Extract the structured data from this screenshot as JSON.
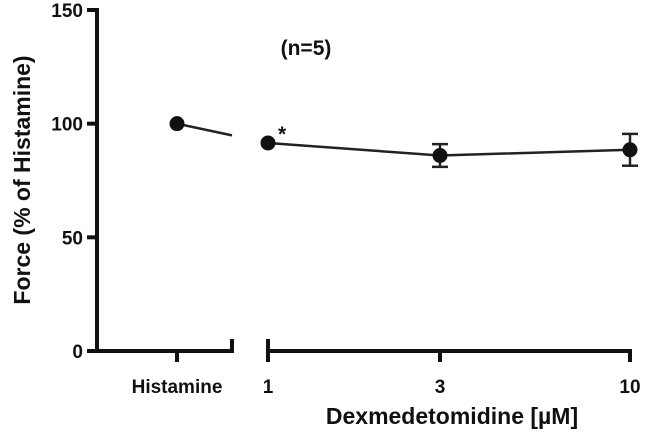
{
  "chart_data": {
    "type": "scatter",
    "ylabel": "Force (% of Histamine)",
    "xlabel": "Dexmedetomidine [µM]",
    "ylim": [
      0,
      150
    ],
    "yticks": [
      0,
      50,
      100,
      150
    ],
    "categories": [
      "Histamine",
      "1",
      "3",
      "10"
    ],
    "points": [
      {
        "x": "Histamine",
        "y": 100,
        "err": 0
      },
      {
        "x": "1",
        "y": 91.5,
        "err": 0,
        "marker": "*"
      },
      {
        "x": "3",
        "y": 86,
        "err": 5
      },
      {
        "x": "10",
        "y": 88.5,
        "err": 7
      }
    ],
    "annotation": "(n=5)",
    "grid": false
  }
}
